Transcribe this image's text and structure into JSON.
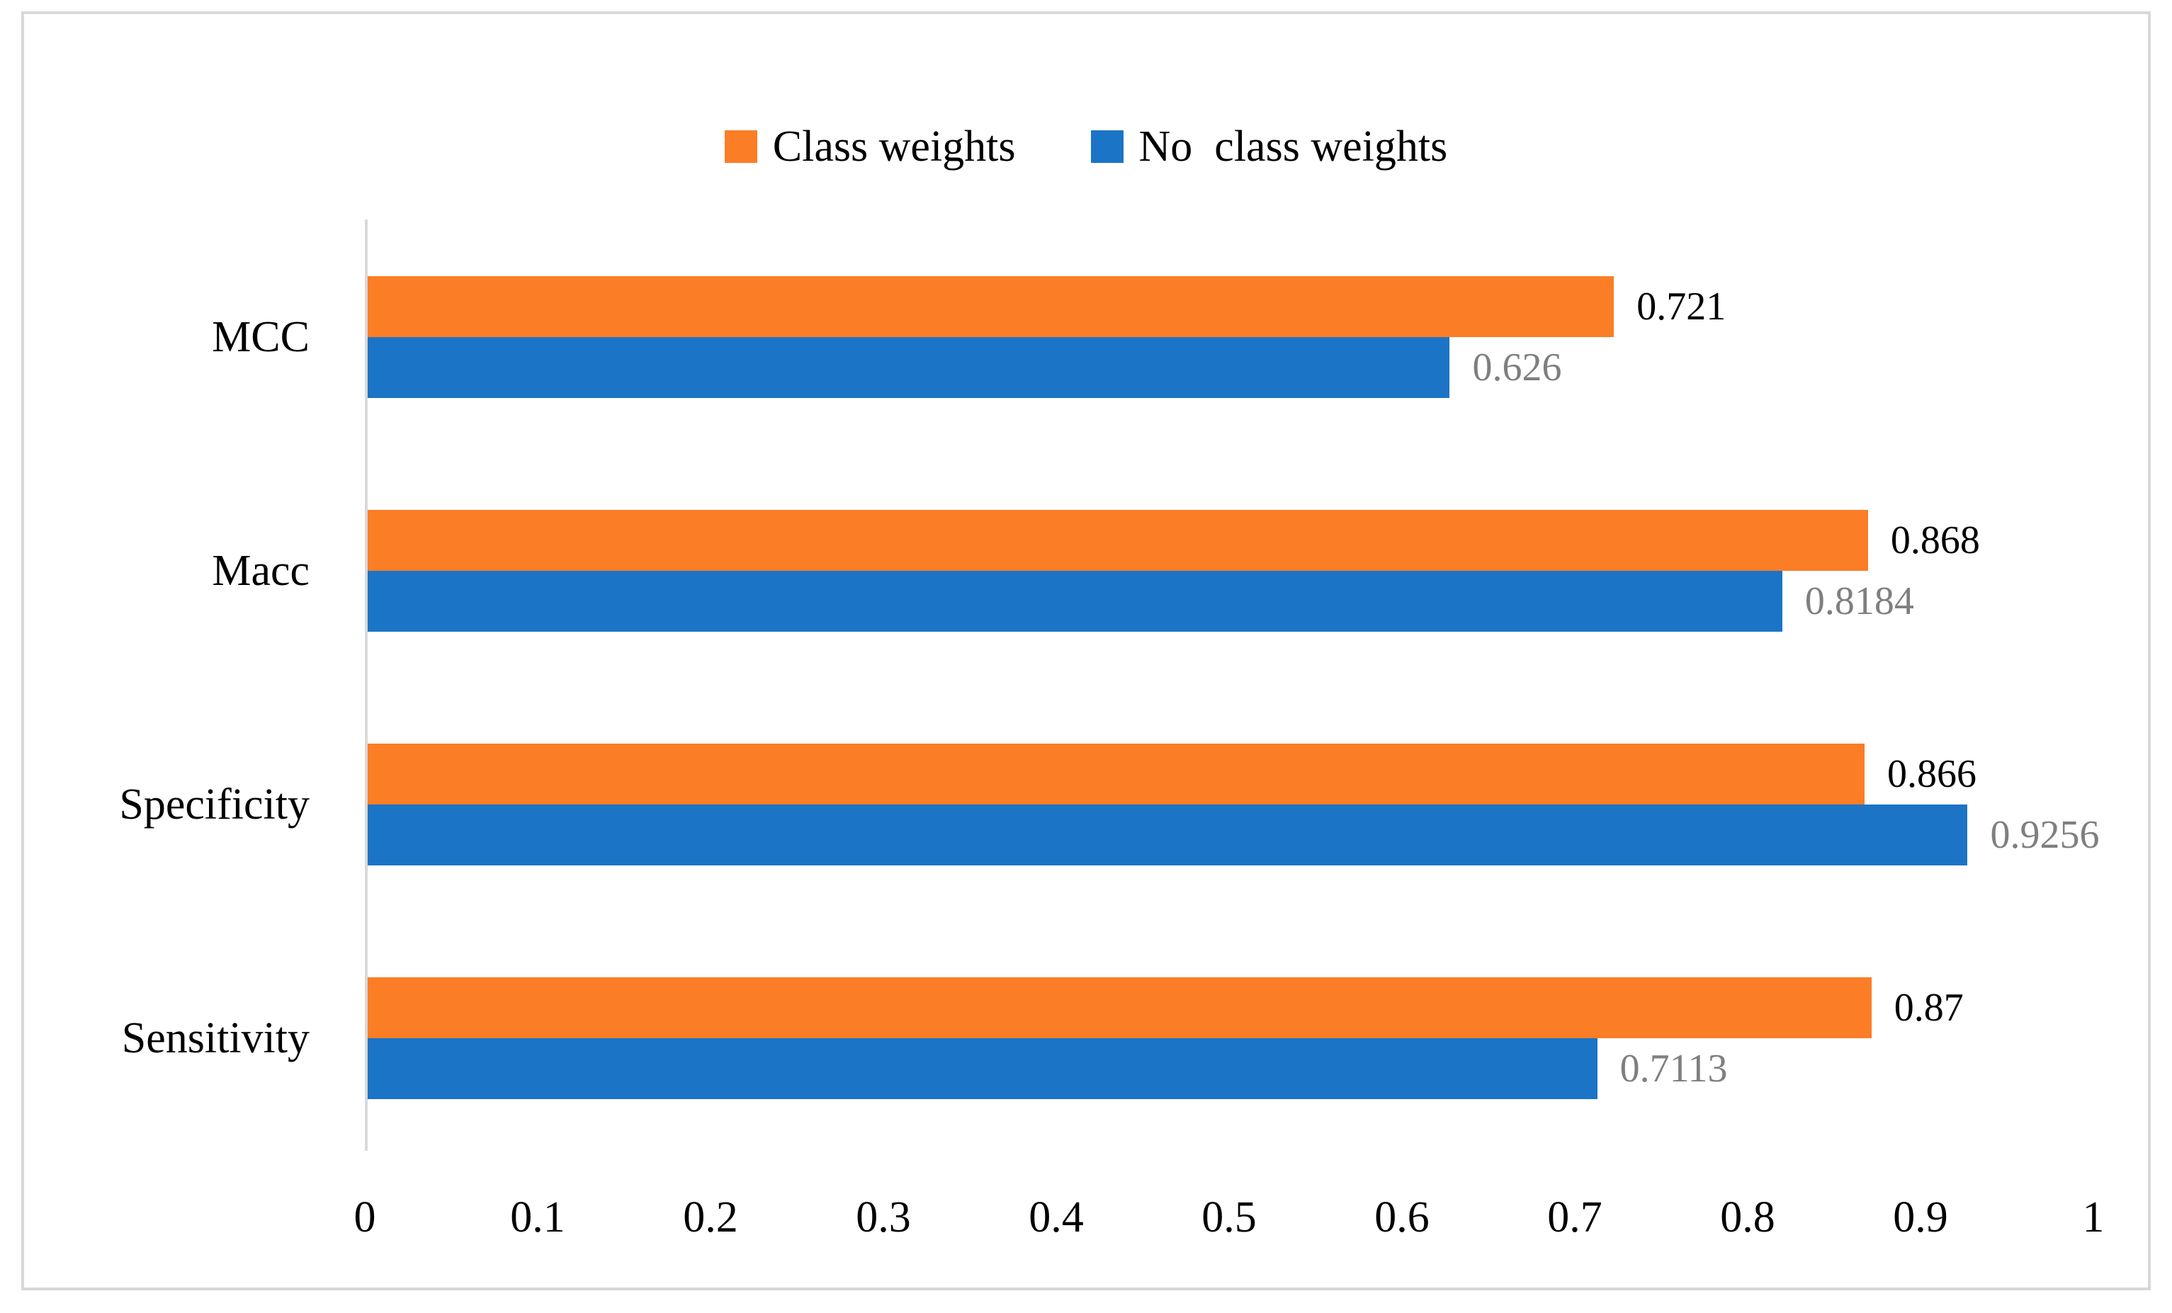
{
  "figure": {
    "border_color": "#D8D8D8",
    "background": "#FFFFFF"
  },
  "chart_data": {
    "type": "bar",
    "orientation": "horizontal",
    "title": "",
    "xlabel": "",
    "ylabel": "",
    "categories": [
      "MCC",
      "Macc",
      "Specificity",
      "Sensitivity"
    ],
    "series": [
      {
        "name": "Class weights",
        "color": "#FB7D26",
        "values": [
          0.721,
          0.868,
          0.866,
          0.87
        ],
        "data_labels": [
          "0.721",
          "0.868",
          "0.866",
          "0.87"
        ],
        "label_color": "#000000"
      },
      {
        "name": "No  class weights",
        "color": "#1B74C6",
        "values": [
          0.626,
          0.8184,
          0.9256,
          0.7113
        ],
        "data_labels": [
          "0.626",
          "0.8184",
          "0.9256",
          "0.7113"
        ],
        "label_color": "#7F7F7F"
      }
    ],
    "xlim": [
      0,
      1
    ],
    "x_ticks": [
      "0",
      "0.1",
      "0.2",
      "0.3",
      "0.4",
      "0.5",
      "0.6",
      "0.7",
      "0.8",
      "0.9",
      "1"
    ],
    "grid": false,
    "legend_position": "top-center",
    "axis_line_color": "#D9D9D9"
  }
}
